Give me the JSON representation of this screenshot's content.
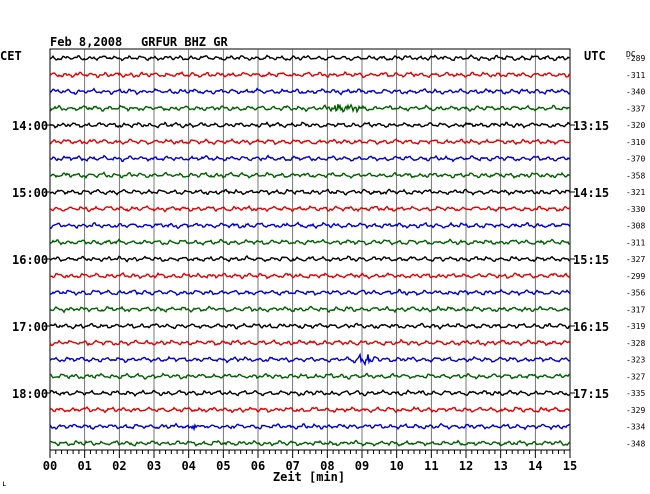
{
  "header": {
    "date": "Feb 8,2008",
    "station": "GRFUR BHZ GR",
    "left_zone": "CET",
    "right_zone": "UTC",
    "dc_header": "DC",
    "corner_mark": "ʟ"
  },
  "chart_data": {
    "type": "line",
    "title": "Feb 8,2008   GRFUR BHZ GR",
    "xlabel": "Zeit [min]",
    "ylabel": "",
    "xlim": [
      0,
      15
    ],
    "x_ticks": [
      "00",
      "01",
      "02",
      "03",
      "04",
      "05",
      "06",
      "07",
      "08",
      "09",
      "10",
      "11",
      "12",
      "13",
      "14",
      "15"
    ],
    "grid": true,
    "trace_colors": [
      "#000000",
      "#e00000",
      "#0000cc",
      "#006000"
    ],
    "left_time_labels": [
      "14:00",
      "15:00",
      "16:00",
      "17:00",
      "18:00"
    ],
    "right_time_labels": [
      "13:15",
      "14:15",
      "15:15",
      "16:15",
      "17:15"
    ],
    "time_label_rows": [
      4,
      8,
      12,
      16,
      20
    ],
    "dc_offsets": [
      -289,
      -311,
      -340,
      -337,
      -320,
      -310,
      -370,
      -358,
      -321,
      -330,
      -308,
      -311,
      -327,
      -299,
      -356,
      -317,
      -319,
      -328,
      -323,
      -327,
      -335,
      -329,
      -334,
      -348
    ],
    "events": [
      {
        "row": 3,
        "center_min": 8.5,
        "width_min": 0.9,
        "amplitude": 1.8
      },
      {
        "row": 18,
        "center_min": 9.1,
        "width_min": 0.6,
        "amplitude": 3.2
      },
      {
        "row": 22,
        "center_min": 4.2,
        "width_min": 0.5,
        "amplitude": 1.4
      }
    ]
  }
}
